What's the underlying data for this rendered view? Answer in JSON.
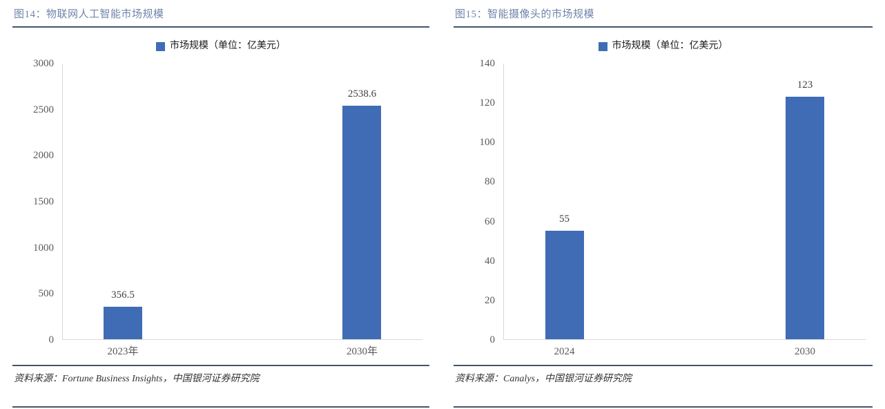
{
  "colors": {
    "bar": "#3F6CB5",
    "rule": "#44546A",
    "title_text": "#6F84AA",
    "axis_line": "#D9D9D9",
    "tick_text": "#595959",
    "value_text": "#3F3F3F"
  },
  "chart_data": [
    {
      "type": "bar",
      "title": "图14：物联网人工智能市场规模",
      "legend": [
        "市场规模（单位：亿美元）"
      ],
      "categories": [
        "2023年",
        "2030年"
      ],
      "values": [
        356.5,
        2538.6
      ],
      "value_labels": [
        "356.5",
        "2538.6"
      ],
      "ylim": [
        0,
        3000
      ],
      "yticks": [
        0,
        500,
        1000,
        1500,
        2000,
        2500,
        3000
      ],
      "grid": false,
      "legend_position": "top-center",
      "source": "资料来源：Fortune Business Insights，中国银河证券研究院"
    },
    {
      "type": "bar",
      "title": "图15：智能摄像头的市场规模",
      "legend": [
        "市场规模（单位：亿美元）"
      ],
      "categories": [
        "2024",
        "2030"
      ],
      "values": [
        55,
        123
      ],
      "value_labels": [
        "55",
        "123"
      ],
      "ylim": [
        0,
        140
      ],
      "yticks": [
        0,
        20,
        40,
        60,
        80,
        100,
        120,
        140
      ],
      "grid": false,
      "legend_position": "top-center",
      "source": "资料来源：Canalys，中国银河证券研究院"
    }
  ]
}
